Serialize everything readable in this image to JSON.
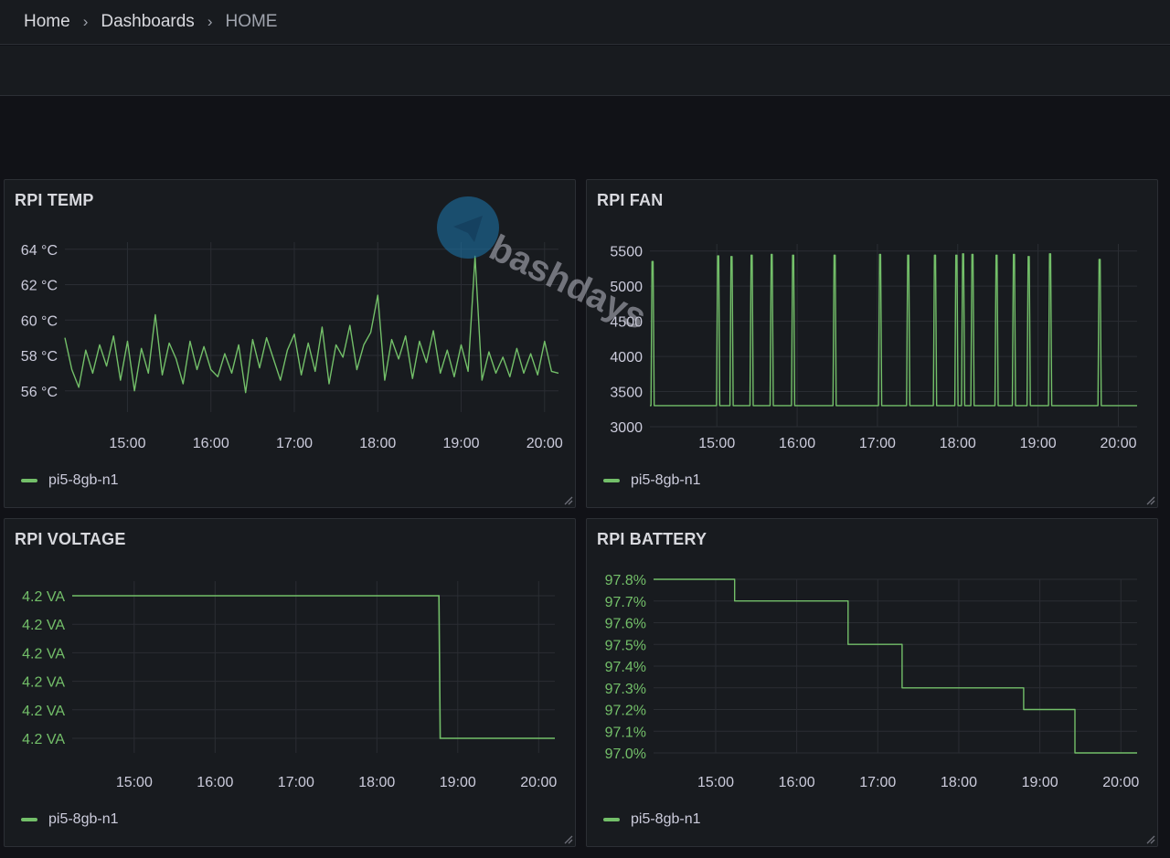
{
  "breadcrumb": {
    "items": [
      "Home",
      "Dashboards"
    ],
    "current": "HOME",
    "separator": "›"
  },
  "watermark": {
    "text": "bashdays",
    "icon": "paper-plane-icon"
  },
  "colors": {
    "series": "#73bf69",
    "panel_bg": "#181b1f",
    "page_bg": "#111217"
  },
  "panels": [
    {
      "id": "temp",
      "title": "RPI TEMP",
      "legend": "pi5-8gb-n1",
      "chart_data": {
        "type": "line",
        "title": "RPI TEMP",
        "x_ticks": [
          "15:00",
          "16:00",
          "17:00",
          "18:00",
          "19:00",
          "20:00"
        ],
        "y_ticks": [
          "64 °C",
          "62 °C",
          "60 °C",
          "58 °C",
          "56 °C"
        ],
        "y_tick_values": [
          64,
          62,
          60,
          58,
          56
        ],
        "ylim": [
          54.8,
          64.4
        ],
        "xlim": [
          "14:15",
          "20:10"
        ],
        "series": [
          {
            "name": "pi5-8gb-n1",
            "x": [
              "14:15",
              "14:20",
              "14:25",
              "14:30",
              "14:35",
              "14:40",
              "14:45",
              "14:50",
              "14:55",
              "15:00",
              "15:05",
              "15:10",
              "15:15",
              "15:20",
              "15:25",
              "15:30",
              "15:35",
              "15:40",
              "15:45",
              "15:50",
              "15:55",
              "16:00",
              "16:05",
              "16:10",
              "16:15",
              "16:20",
              "16:25",
              "16:30",
              "16:35",
              "16:40",
              "16:45",
              "16:50",
              "16:55",
              "17:00",
              "17:05",
              "17:10",
              "17:15",
              "17:20",
              "17:25",
              "17:30",
              "17:35",
              "17:40",
              "17:45",
              "17:50",
              "17:55",
              "18:00",
              "18:05",
              "18:10",
              "18:15",
              "18:20",
              "18:25",
              "18:30",
              "18:35",
              "18:40",
              "18:45",
              "18:50",
              "18:55",
              "19:00",
              "19:05",
              "19:10",
              "19:15",
              "19:20",
              "19:25",
              "19:30",
              "19:35",
              "19:40",
              "19:45",
              "19:50",
              "19:55",
              "20:00",
              "20:05",
              "20:10"
            ],
            "y": [
              59.0,
              57.2,
              56.2,
              58.3,
              57.0,
              58.6,
              57.4,
              59.1,
              56.6,
              58.8,
              56.0,
              58.4,
              57.0,
              60.3,
              56.9,
              58.7,
              57.8,
              56.4,
              58.8,
              57.2,
              58.5,
              57.2,
              56.8,
              58.1,
              57.0,
              58.6,
              55.9,
              58.9,
              57.3,
              59.0,
              57.8,
              56.6,
              58.3,
              59.2,
              56.9,
              58.7,
              57.1,
              59.6,
              56.4,
              58.6,
              57.9,
              59.7,
              57.2,
              58.6,
              59.3,
              61.4,
              56.6,
              58.9,
              57.8,
              59.1,
              56.7,
              58.8,
              57.6,
              59.4,
              57.0,
              58.3,
              56.8,
              58.6,
              57.1,
              63.6,
              56.6,
              58.2,
              57.0,
              57.9,
              56.8,
              58.4,
              57.0,
              58.1,
              56.9,
              58.8,
              57.1,
              57.0
            ]
          }
        ]
      }
    },
    {
      "id": "fan",
      "title": "RPI FAN",
      "legend": "pi5-8gb-n1",
      "chart_data": {
        "type": "line",
        "title": "RPI FAN",
        "x_ticks": [
          "15:00",
          "16:00",
          "17:00",
          "18:00",
          "19:00",
          "20:00"
        ],
        "y_ticks": [
          "5500",
          "5000",
          "4500",
          "4000",
          "3500",
          "3000"
        ],
        "y_tick_values": [
          5500,
          5000,
          4500,
          4000,
          3500,
          3000
        ],
        "ylim": [
          3000,
          5600
        ],
        "xlim": [
          "14:10",
          "20:14"
        ],
        "baseline": 3300,
        "spikes": [
          {
            "time": "14:12",
            "peak": 5350
          },
          {
            "time": "15:01",
            "peak": 5430
          },
          {
            "time": "15:11",
            "peak": 5420
          },
          {
            "time": "15:26",
            "peak": 5440
          },
          {
            "time": "15:41",
            "peak": 5450
          },
          {
            "time": "15:57",
            "peak": 5440
          },
          {
            "time": "16:28",
            "peak": 5440
          },
          {
            "time": "17:02",
            "peak": 5450
          },
          {
            "time": "17:23",
            "peak": 5440
          },
          {
            "time": "17:43",
            "peak": 5440
          },
          {
            "time": "17:59",
            "peak": 5440
          },
          {
            "time": "18:04",
            "peak": 5460
          },
          {
            "time": "18:11",
            "peak": 5450
          },
          {
            "time": "18:29",
            "peak": 5440
          },
          {
            "time": "18:42",
            "peak": 5450
          },
          {
            "time": "18:53",
            "peak": 5420
          },
          {
            "time": "19:09",
            "peak": 5460
          },
          {
            "time": "19:46",
            "peak": 5380
          }
        ],
        "series": [
          {
            "name": "pi5-8gb-n1"
          }
        ]
      }
    },
    {
      "id": "voltage",
      "title": "RPI VOLTAGE",
      "legend": "pi5-8gb-n1",
      "chart_data": {
        "type": "line",
        "title": "RPI VOLTAGE",
        "x_ticks": [
          "15:00",
          "16:00",
          "17:00",
          "18:00",
          "19:00",
          "20:00"
        ],
        "y_ticks": [
          "4.2 VA",
          "4.2 VA",
          "4.2 VA",
          "4.2 VA",
          "4.2 VA",
          "4.2 VA"
        ],
        "xlim": [
          "14:14",
          "20:12"
        ],
        "series": [
          {
            "name": "pi5-8gb-n1",
            "x": [
              "14:14",
              "18:46",
              "18:47",
              "20:12"
            ],
            "y": [
              4.205,
              4.205,
              4.195,
              4.195
            ]
          }
        ]
      }
    },
    {
      "id": "battery",
      "title": "RPI BATTERY",
      "legend": "pi5-8gb-n1",
      "chart_data": {
        "type": "line",
        "title": "RPI BATTERY",
        "x_ticks": [
          "15:00",
          "16:00",
          "17:00",
          "18:00",
          "19:00",
          "20:00"
        ],
        "y_ticks": [
          "97.8%",
          "97.7%",
          "97.6%",
          "97.5%",
          "97.4%",
          "97.3%",
          "97.2%",
          "97.1%",
          "97.0%"
        ],
        "y_tick_values": [
          97.8,
          97.7,
          97.6,
          97.5,
          97.4,
          97.3,
          97.2,
          97.1,
          97.0
        ],
        "ylim": [
          97.0,
          97.8
        ],
        "xlim": [
          "14:14",
          "20:12"
        ],
        "series": [
          {
            "name": "pi5-8gb-n1",
            "x": [
              "14:14",
              "15:14",
              "15:14",
              "16:38",
              "16:38",
              "17:18",
              "17:18",
              "18:48",
              "18:48",
              "19:26",
              "19:26",
              "20:12"
            ],
            "y": [
              97.8,
              97.8,
              97.7,
              97.7,
              97.5,
              97.5,
              97.3,
              97.3,
              97.2,
              97.2,
              97.0,
              97.0
            ]
          }
        ]
      }
    }
  ]
}
